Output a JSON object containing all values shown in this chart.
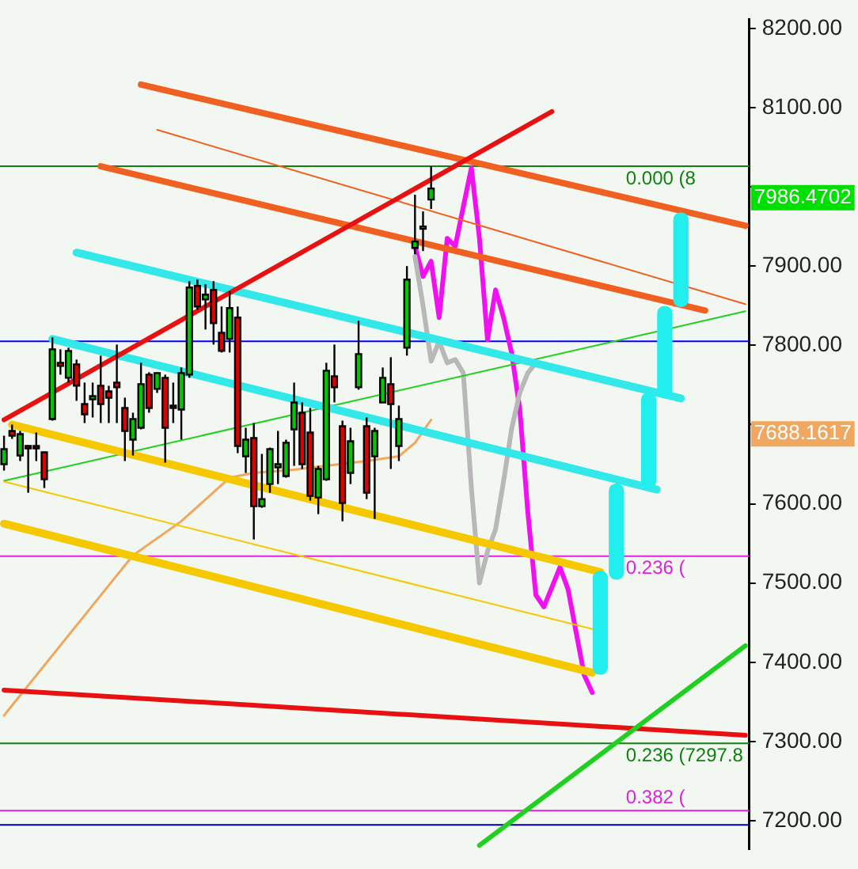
{
  "chart_data": {
    "type": "candlestick",
    "categories": [
      null,
      null,
      null,
      null,
      null,
      null,
      null,
      null,
      null,
      null,
      null,
      null,
      null,
      null,
      null,
      null,
      null,
      null,
      null,
      null,
      null,
      null,
      null,
      null,
      null,
      null,
      null,
      null,
      null,
      null,
      null,
      null,
      null,
      null,
      null,
      null,
      null,
      null,
      null,
      null,
      null,
      null,
      null,
      null,
      null,
      null,
      null,
      null,
      null,
      null,
      null,
      null,
      null,
      null,
      null,
      null,
      null,
      null,
      null,
      null,
      null,
      null,
      null,
      null,
      null,
      null,
      null,
      null,
      null,
      null,
      null,
      null,
      null,
      null,
      null,
      null,
      null,
      null,
      null,
      null,
      null,
      null,
      null,
      null,
      null,
      null,
      null,
      null,
      null,
      null,
      null,
      null,
      null
    ],
    "ohlc": [
      [
        7650,
        7686,
        7642,
        7669
      ],
      [
        7692,
        7700,
        7682,
        7686
      ],
      [
        7661,
        7692,
        7654,
        7688
      ],
      [
        7673,
        7674,
        7614,
        7671
      ],
      [
        7673,
        7690,
        7654,
        7671
      ],
      [
        7665,
        7665,
        7620,
        7631
      ],
      [
        7707,
        7810,
        7705,
        7795
      ],
      [
        7778,
        7795,
        7763,
        7774
      ],
      [
        7759,
        7797,
        7753,
        7793
      ],
      [
        7776,
        7782,
        7730,
        7749
      ],
      [
        7726,
        7753,
        7702,
        7713
      ],
      [
        7732,
        7753,
        7709,
        7736
      ],
      [
        7749,
        7787,
        7702,
        7726
      ],
      [
        7742,
        7749,
        7702,
        7734
      ],
      [
        7753,
        7801,
        7702,
        7747
      ],
      [
        7721,
        7734,
        7654,
        7692
      ],
      [
        7681,
        7715,
        7661,
        7707
      ],
      [
        7696,
        7778,
        7694,
        7751
      ],
      [
        7763,
        7766,
        7715,
        7721
      ],
      [
        7745,
        7766,
        7740,
        7765
      ],
      [
        7759,
        7763,
        7652,
        7696
      ],
      [
        7724,
        7753,
        7702,
        7721
      ],
      [
        7719,
        7772,
        7681,
        7765
      ],
      [
        7763,
        7881,
        7759,
        7873
      ],
      [
        7875,
        7883,
        7845,
        7849
      ],
      [
        7858,
        7877,
        7820,
        7864
      ],
      [
        7870,
        7881,
        7801,
        7828
      ],
      [
        7816,
        7849,
        7791,
        7793
      ],
      [
        7808,
        7868,
        7791,
        7847
      ],
      [
        7835,
        7849,
        7664,
        7673
      ],
      [
        7660,
        7696,
        7639,
        7681
      ],
      [
        7683,
        7702,
        7555,
        7597
      ],
      [
        7597,
        7663,
        7595,
        7606
      ],
      [
        7625,
        7671,
        7614,
        7669
      ],
      [
        7646,
        7692,
        7625,
        7650
      ],
      [
        7635,
        7681,
        7633,
        7677
      ],
      [
        7694,
        7753,
        7648,
        7728
      ],
      [
        7715,
        7728,
        7644,
        7650
      ],
      [
        7690,
        7721,
        7604,
        7610
      ],
      [
        7608,
        7648,
        7587,
        7644
      ],
      [
        7631,
        7778,
        7629,
        7768
      ],
      [
        7761,
        7801,
        7728,
        7747
      ],
      [
        7698,
        7705,
        7578,
        7601
      ],
      [
        7639,
        7696,
        7625,
        7679
      ],
      [
        7747,
        7831,
        7744,
        7789
      ],
      [
        7698,
        7709,
        7606,
        7614
      ],
      [
        7660,
        7696,
        7581,
        7692
      ],
      [
        7728,
        7772,
        7728,
        7759
      ],
      [
        7751,
        7785,
        7644,
        7726
      ],
      [
        7673,
        7724,
        7654,
        7707
      ],
      [
        7797,
        7900,
        7787,
        7883
      ],
      [
        7923,
        7990,
        7915,
        7931
      ],
      [
        7947,
        7969,
        7919,
        7950
      ],
      [
        7984,
        8026,
        7972,
        7998
      ],
      null,
      null,
      null,
      null,
      null,
      null,
      null,
      null,
      null,
      null,
      null,
      null,
      null,
      null,
      null,
      null,
      null,
      null,
      null,
      null,
      null,
      null,
      null,
      null,
      null,
      null,
      null,
      null,
      null,
      null,
      null,
      null,
      null,
      null,
      null,
      null,
      null,
      null,
      null
    ],
    "colors": [
      "#00c800",
      "#e00000",
      "#00c800",
      "#e00000",
      "#e00000",
      "#e00000",
      "#00c800",
      "#e00000",
      "#00c800",
      "#e00000",
      "#e00000",
      "#00c800",
      "#e00000",
      "#e00000",
      "#e00000",
      "#e00000",
      "#00c800",
      "#00c800",
      "#e00000",
      "#00c800",
      "#e00000",
      "#e00000",
      "#00c800",
      "#00c800",
      "#e00000",
      "#00c800",
      "#e00000",
      "#e00000",
      "#00c800",
      "#e00000",
      "#00c800",
      "#e00000",
      "#00c800",
      "#00c800",
      "#00c800",
      "#00c800",
      "#00c800",
      "#e00000",
      "#e00000",
      "#00c800",
      "#00c800",
      "#e00000",
      "#e00000",
      "#00c800",
      "#00c800",
      "#e00000",
      "#00c800",
      "#00c800",
      "#e00000",
      "#00c800",
      "#00c800",
      "#00c800",
      "#00c800",
      "#00c800",
      null,
      null,
      null,
      null,
      null,
      null,
      null,
      null,
      null,
      null,
      null,
      null,
      null,
      null,
      null,
      null,
      null,
      null,
      null,
      null,
      null,
      null,
      null,
      null,
      null,
      null,
      null,
      null,
      null,
      null,
      null,
      null,
      null,
      null,
      null,
      null,
      null,
      null,
      null
    ],
    "series": [
      {
        "type": "line",
        "color": "#e81010",
        "values": [
          7706,
          null,
          null,
          null,
          null,
          null,
          null,
          null,
          null,
          null,
          null,
          null,
          null,
          null,
          null,
          null,
          null,
          null,
          null,
          null,
          null,
          null,
          null,
          null,
          null,
          null,
          null,
          null,
          null,
          null,
          null,
          null,
          null,
          null,
          null,
          null,
          null,
          null,
          null,
          null,
          null,
          null,
          null,
          null,
          null,
          null,
          null,
          null,
          null,
          null,
          null,
          null,
          null,
          null,
          null,
          null,
          null,
          null,
          null,
          null,
          null,
          null,
          null,
          null,
          null,
          null,
          null,
          null,
          8095,
          null,
          null,
          null,
          null,
          null,
          null,
          null,
          null,
          null,
          null,
          null,
          null,
          null,
          null,
          null,
          null,
          null,
          null,
          null,
          null,
          null,
          null,
          null,
          null
        ]
      },
      {
        "type": "line",
        "color": "#f06020",
        "values": [
          null,
          null,
          null,
          null,
          null,
          null,
          null,
          null,
          null,
          null,
          null,
          null,
          null,
          null,
          null,
          null,
          null,
          8129,
          null,
          null,
          null,
          null,
          null,
          null,
          null,
          null,
          null,
          null,
          null,
          null,
          null,
          null,
          null,
          null,
          null,
          null,
          null,
          null,
          null,
          null,
          null,
          null,
          null,
          null,
          null,
          null,
          null,
          null,
          null,
          null,
          null,
          null,
          null,
          null,
          null,
          null,
          null,
          null,
          null,
          null,
          null,
          null,
          null,
          null,
          null,
          null,
          null,
          null,
          null,
          null,
          null,
          null,
          null,
          null,
          null,
          null,
          null,
          null,
          null,
          null,
          null,
          null,
          null,
          null,
          null,
          null,
          null,
          null,
          null,
          null,
          null,
          null,
          7951
        ]
      },
      {
        "type": "line",
        "color": "#f06020",
        "values": [
          null,
          null,
          null,
          null,
          null,
          null,
          null,
          null,
          null,
          null,
          null,
          null,
          null,
          null,
          null,
          null,
          null,
          null,
          null,
          8072,
          null,
          null,
          null,
          null,
          null,
          null,
          null,
          null,
          null,
          null,
          null,
          null,
          null,
          null,
          null,
          null,
          null,
          null,
          null,
          null,
          null,
          null,
          null,
          null,
          null,
          null,
          null,
          null,
          null,
          null,
          null,
          null,
          null,
          null,
          null,
          null,
          null,
          null,
          null,
          null,
          null,
          null,
          null,
          null,
          null,
          null,
          null,
          null,
          null,
          null,
          null,
          null,
          null,
          null,
          null,
          null,
          null,
          null,
          null,
          null,
          null,
          null,
          null,
          null,
          null,
          null,
          null,
          null,
          null,
          null,
          null,
          null,
          7852
        ]
      },
      {
        "type": "line",
        "color": "#f06020",
        "values": [
          null,
          null,
          null,
          null,
          null,
          null,
          null,
          null,
          null,
          null,
          null,
          null,
          8026,
          null,
          null,
          null,
          null,
          null,
          null,
          null,
          null,
          null,
          null,
          null,
          null,
          null,
          null,
          null,
          null,
          null,
          null,
          null,
          null,
          null,
          null,
          null,
          null,
          null,
          null,
          null,
          null,
          null,
          null,
          null,
          null,
          null,
          null,
          null,
          null,
          null,
          null,
          null,
          null,
          null,
          null,
          null,
          null,
          null,
          null,
          null,
          null,
          null,
          null,
          null,
          null,
          null,
          null,
          null,
          null,
          null,
          null,
          null,
          null,
          null,
          null,
          null,
          null,
          null,
          null,
          null,
          null,
          null,
          null,
          null,
          null,
          null,
          null,
          7844,
          null,
          null,
          null,
          null,
          null
        ]
      },
      {
        "type": "line",
        "color": "#33e8e8",
        "values": [
          null,
          null,
          null,
          null,
          null,
          null,
          null,
          null,
          null,
          7917,
          null,
          null,
          null,
          null,
          null,
          null,
          null,
          null,
          null,
          null,
          null,
          null,
          null,
          null,
          null,
          null,
          null,
          null,
          null,
          null,
          null,
          null,
          null,
          null,
          null,
          null,
          null,
          null,
          null,
          null,
          null,
          null,
          null,
          null,
          null,
          null,
          null,
          null,
          null,
          null,
          null,
          null,
          null,
          null,
          null,
          null,
          null,
          null,
          null,
          null,
          null,
          null,
          null,
          null,
          null,
          null,
          null,
          null,
          null,
          null,
          null,
          null,
          null,
          null,
          null,
          null,
          null,
          null,
          null,
          null,
          null,
          null,
          null,
          null,
          7733,
          null,
          null,
          null,
          null,
          null,
          null,
          null,
          null
        ]
      },
      {
        "type": "line",
        "color": "#33e8e8",
        "values": [
          null,
          null,
          null,
          null,
          null,
          null,
          7808,
          null,
          null,
          null,
          null,
          null,
          null,
          null,
          null,
          null,
          null,
          null,
          null,
          null,
          null,
          null,
          null,
          null,
          null,
          null,
          null,
          null,
          null,
          null,
          null,
          null,
          null,
          null,
          null,
          null,
          null,
          null,
          null,
          null,
          null,
          null,
          null,
          null,
          null,
          null,
          null,
          null,
          null,
          null,
          null,
          null,
          null,
          null,
          null,
          null,
          null,
          null,
          null,
          null,
          null,
          null,
          null,
          null,
          null,
          null,
          null,
          null,
          null,
          null,
          null,
          null,
          null,
          null,
          null,
          null,
          null,
          null,
          null,
          null,
          null,
          7618,
          null,
          null,
          null,
          null,
          null,
          null,
          null,
          null,
          null,
          null,
          null
        ]
      },
      {
        "type": "line",
        "color": "#f5c800",
        "values": [
          null,
          7700,
          null,
          null,
          null,
          null,
          null,
          null,
          null,
          null,
          null,
          null,
          null,
          null,
          null,
          null,
          null,
          null,
          null,
          null,
          null,
          null,
          null,
          null,
          null,
          null,
          null,
          null,
          null,
          null,
          null,
          null,
          null,
          null,
          null,
          null,
          null,
          null,
          null,
          null,
          null,
          null,
          null,
          null,
          null,
          null,
          null,
          null,
          null,
          null,
          null,
          null,
          null,
          null,
          null,
          null,
          null,
          null,
          null,
          null,
          null,
          null,
          null,
          null,
          null,
          null,
          null,
          null,
          null,
          null,
          null,
          null,
          null,
          null,
          7514,
          null,
          null,
          null,
          null,
          null,
          null,
          null,
          null,
          null,
          null,
          null,
          null,
          null,
          null,
          null,
          null,
          null,
          null
        ]
      },
      {
        "type": "line",
        "color": "#f5c800",
        "values": [
          7628,
          null,
          null,
          null,
          null,
          null,
          null,
          null,
          null,
          null,
          null,
          null,
          null,
          null,
          null,
          null,
          null,
          null,
          null,
          null,
          null,
          null,
          null,
          null,
          null,
          null,
          null,
          null,
          null,
          null,
          null,
          null,
          null,
          null,
          null,
          null,
          null,
          null,
          null,
          null,
          null,
          null,
          null,
          null,
          null,
          null,
          null,
          null,
          null,
          null,
          null,
          null,
          null,
          null,
          null,
          null,
          null,
          null,
          null,
          null,
          null,
          null,
          null,
          null,
          null,
          null,
          null,
          null,
          null,
          null,
          null,
          null,
          null,
          7442,
          null,
          null,
          null,
          null,
          null,
          null,
          null,
          null,
          null,
          null,
          null,
          null,
          null,
          null,
          null,
          null,
          null,
          null,
          null
        ]
      },
      {
        "type": "line",
        "color": "#f5c800",
        "values": [
          7575,
          null,
          null,
          null,
          null,
          null,
          null,
          null,
          null,
          null,
          null,
          null,
          null,
          null,
          null,
          null,
          null,
          null,
          null,
          null,
          null,
          null,
          null,
          null,
          null,
          null,
          null,
          null,
          null,
          null,
          null,
          null,
          null,
          null,
          null,
          null,
          null,
          null,
          null,
          null,
          null,
          null,
          null,
          null,
          null,
          null,
          null,
          null,
          null,
          null,
          null,
          null,
          null,
          null,
          null,
          null,
          null,
          null,
          null,
          null,
          null,
          null,
          null,
          null,
          null,
          null,
          null,
          null,
          null,
          null,
          null,
          null,
          null,
          7387,
          null,
          null,
          null,
          null,
          null,
          null,
          null,
          null,
          null,
          null,
          null,
          null,
          null,
          null,
          null,
          null,
          null,
          null,
          null
        ]
      },
      {
        "type": "line",
        "color": "#20d020",
        "values": [
          7629,
          null,
          null,
          null,
          null,
          null,
          null,
          null,
          null,
          null,
          null,
          null,
          null,
          null,
          null,
          null,
          null,
          null,
          null,
          null,
          null,
          null,
          null,
          null,
          null,
          null,
          null,
          null,
          null,
          null,
          null,
          null,
          null,
          null,
          null,
          null,
          null,
          null,
          null,
          null,
          null,
          null,
          null,
          null,
          null,
          null,
          null,
          null,
          null,
          null,
          null,
          null,
          null,
          null,
          null,
          null,
          null,
          null,
          null,
          null,
          null,
          null,
          null,
          null,
          null,
          null,
          null,
          null,
          null,
          null,
          null,
          null,
          null,
          null,
          null,
          null,
          null,
          null,
          null,
          null,
          null,
          null,
          null,
          null,
          null,
          null,
          null,
          null,
          null,
          null,
          null,
          null,
          7843
        ]
      },
      {
        "type": "line",
        "color": "#20d020",
        "values": [
          null,
          null,
          null,
          null,
          null,
          null,
          null,
          null,
          null,
          null,
          null,
          null,
          null,
          null,
          null,
          null,
          null,
          null,
          null,
          null,
          null,
          null,
          null,
          null,
          null,
          null,
          null,
          null,
          null,
          null,
          null,
          null,
          null,
          null,
          null,
          null,
          null,
          null,
          null,
          null,
          null,
          null,
          null,
          null,
          null,
          null,
          null,
          null,
          null,
          null,
          null,
          null,
          null,
          null,
          null,
          null,
          null,
          null,
          null,
          7169,
          null,
          null,
          null,
          null,
          null,
          null,
          null,
          null,
          null,
          null,
          null,
          null,
          null,
          null,
          null,
          null,
          null,
          null,
          null,
          null,
          null,
          null,
          null,
          null,
          null,
          null,
          null,
          null,
          null,
          null,
          null,
          null,
          7421
        ]
      },
      {
        "type": "line",
        "color": "#e81010",
        "values": [
          7365,
          null,
          null,
          null,
          null,
          null,
          null,
          null,
          null,
          null,
          null,
          null,
          null,
          null,
          null,
          null,
          null,
          null,
          null,
          null,
          null,
          null,
          null,
          null,
          null,
          null,
          null,
          null,
          null,
          null,
          null,
          null,
          null,
          null,
          null,
          null,
          null,
          null,
          null,
          null,
          null,
          null,
          null,
          null,
          null,
          null,
          null,
          null,
          null,
          null,
          null,
          null,
          null,
          null,
          null,
          null,
          null,
          null,
          null,
          null,
          null,
          null,
          null,
          null,
          null,
          null,
          null,
          null,
          null,
          null,
          null,
          null,
          null,
          null,
          null,
          null,
          null,
          null,
          null,
          null,
          null,
          null,
          null,
          null,
          null,
          null,
          null,
          null,
          null,
          null,
          null,
          null,
          7308
        ]
      },
      {
        "type": "line",
        "color": "#f0a860",
        "values": [
          7333,
          null,
          null,
          null,
          null,
          null,
          null,
          null,
          null,
          null,
          null,
          null,
          null,
          null,
          null,
          null,
          7535,
          null,
          null,
          null,
          null,
          null,
          7578,
          null,
          null,
          null,
          null,
          null,
          7633,
          null,
          null,
          7639,
          null,
          null,
          null,
          null,
          7643,
          null,
          null,
          null,
          7648,
          null,
          null,
          null,
          null,
          7654,
          null,
          null,
          null,
          7660,
          null,
          7677,
          null,
          7706,
          null,
          null,
          null,
          null,
          null,
          null,
          null,
          null,
          null,
          null,
          null,
          null,
          null,
          null,
          null,
          null,
          null,
          null,
          null,
          null,
          null,
          null,
          null,
          null,
          null,
          null,
          null,
          null,
          null,
          null,
          null,
          null,
          null,
          null,
          null,
          null,
          null,
          null,
          null
        ]
      },
      {
        "type": "line",
        "color": "#b8b8b8",
        "values": [
          null,
          null,
          null,
          null,
          null,
          null,
          null,
          null,
          null,
          null,
          null,
          null,
          null,
          null,
          null,
          null,
          null,
          null,
          null,
          null,
          null,
          null,
          null,
          null,
          null,
          null,
          null,
          null,
          null,
          null,
          null,
          null,
          null,
          null,
          null,
          null,
          null,
          null,
          null,
          null,
          null,
          null,
          null,
          null,
          null,
          null,
          null,
          null,
          null,
          null,
          null,
          7912,
          7850,
          7780,
          7805,
          7778,
          7782,
          7765,
          7620,
          7500,
          7540,
          7568,
          7629,
          7695,
          7740,
          7765,
          7778,
          null,
          null,
          null,
          null,
          null,
          null,
          null,
          null,
          null,
          null,
          null,
          null,
          null,
          null,
          null,
          null,
          null,
          null,
          null,
          null,
          null,
          null,
          null,
          null,
          null,
          null
        ]
      },
      {
        "type": "line",
        "color": "#f010f0",
        "values": [
          null,
          null,
          null,
          null,
          null,
          null,
          null,
          null,
          null,
          null,
          null,
          null,
          null,
          null,
          null,
          null,
          null,
          null,
          null,
          null,
          null,
          null,
          null,
          null,
          null,
          null,
          null,
          null,
          null,
          null,
          null,
          null,
          null,
          null,
          null,
          null,
          null,
          null,
          null,
          null,
          null,
          null,
          null,
          null,
          null,
          null,
          null,
          null,
          null,
          null,
          null,
          7925,
          7887,
          7906,
          7835,
          7935,
          7925,
          7975,
          8024,
          7935,
          7807,
          7870,
          7835,
          7790,
          7720,
          7590,
          7485,
          7470,
          7495,
          7520,
          7492,
          7438,
          7384,
          7362,
          null,
          null,
          null,
          null,
          null,
          null,
          null,
          null,
          null,
          null,
          null,
          null,
          null,
          null,
          null,
          null,
          null,
          null,
          null
        ]
      },
      {
        "type": "bar",
        "color": "#22eeee",
        "base": [
          null,
          null,
          null,
          null,
          null,
          null,
          null,
          null,
          null,
          null,
          null,
          null,
          null,
          null,
          null,
          null,
          null,
          null,
          null,
          null,
          null,
          null,
          null,
          null,
          null,
          null,
          null,
          null,
          null,
          null,
          null,
          null,
          null,
          null,
          null,
          null,
          null,
          null,
          null,
          null,
          null,
          null,
          null,
          null,
          null,
          null,
          null,
          null,
          null,
          null,
          null,
          null,
          null,
          null,
          null,
          null,
          null,
          null,
          null,
          null,
          null,
          null,
          null,
          null,
          null,
          null,
          null,
          null,
          null,
          null,
          null,
          null,
          null,
          null,
          7385,
          null,
          7505,
          null,
          null,
          null,
          7620,
          null,
          7734,
          null,
          7849,
          null,
          null,
          null,
          null,
          null,
          null,
          null,
          null
        ],
        "values": [
          null,
          null,
          null,
          null,
          null,
          null,
          null,
          null,
          null,
          null,
          null,
          null,
          null,
          null,
          null,
          null,
          null,
          null,
          null,
          null,
          null,
          null,
          null,
          null,
          null,
          null,
          null,
          null,
          null,
          null,
          null,
          null,
          null,
          null,
          null,
          null,
          null,
          null,
          null,
          null,
          null,
          null,
          null,
          null,
          null,
          null,
          null,
          null,
          null,
          null,
          null,
          null,
          null,
          null,
          null,
          null,
          null,
          null,
          null,
          null,
          null,
          null,
          null,
          null,
          null,
          null,
          null,
          null,
          null,
          null,
          null,
          null,
          null,
          null,
          130,
          null,
          120,
          null,
          null,
          null,
          120,
          null,
          115,
          null,
          118,
          null,
          null,
          null,
          null,
          null,
          null,
          null,
          null
        ]
      }
    ],
    "ref_lines": [
      {
        "axis": "y",
        "value": 8026,
        "label": null,
        "color": "#108010"
      },
      {
        "axis": "y",
        "value": 7805,
        "label": null,
        "color": "#0000ff"
      },
      {
        "axis": "y",
        "value": 7534,
        "label": null,
        "color": "#e020e0"
      },
      {
        "axis": "y",
        "value": 7297.8,
        "label": "0.236 (7297.8",
        "color": "#108010"
      },
      {
        "axis": "y",
        "value": 7213,
        "label": null,
        "color": "#e020e0"
      },
      {
        "axis": "y",
        "value": 7195,
        "label": null,
        "color": "#0000a0"
      }
    ],
    "annotations": [
      "7986.4702",
      "7688.1617",
      {
        "text": "0.000 (8",
        "y": 8026
      },
      {
        "text": "0.236 (",
        "y": 7534
      },
      {
        "text": "0.382 (",
        "y": 7213
      }
    ],
    "ylim": [
      7164,
      8211
    ],
    "yticks": [
      {
        "value": 7200,
        "label": "7200.00"
      },
      {
        "value": 7300,
        "label": "7300.00"
      },
      {
        "value": 7400,
        "label": "7400.00"
      },
      {
        "value": 7500,
        "label": "7500.00"
      },
      {
        "value": 7600,
        "label": "7600.00"
      },
      {
        "value": 7700,
        "label": null
      },
      {
        "value": 7800,
        "label": "7800.00"
      },
      {
        "value": 7900,
        "label": "7900.00"
      },
      {
        "value": 8000,
        "label": null
      },
      {
        "value": 8100,
        "label": "8100.00"
      },
      {
        "value": 8200,
        "label": "8200.00"
      }
    ],
    "tick_labels": "y",
    "grid": false,
    "legend": false,
    "marker": "none",
    "line_style": "solid"
  }
}
